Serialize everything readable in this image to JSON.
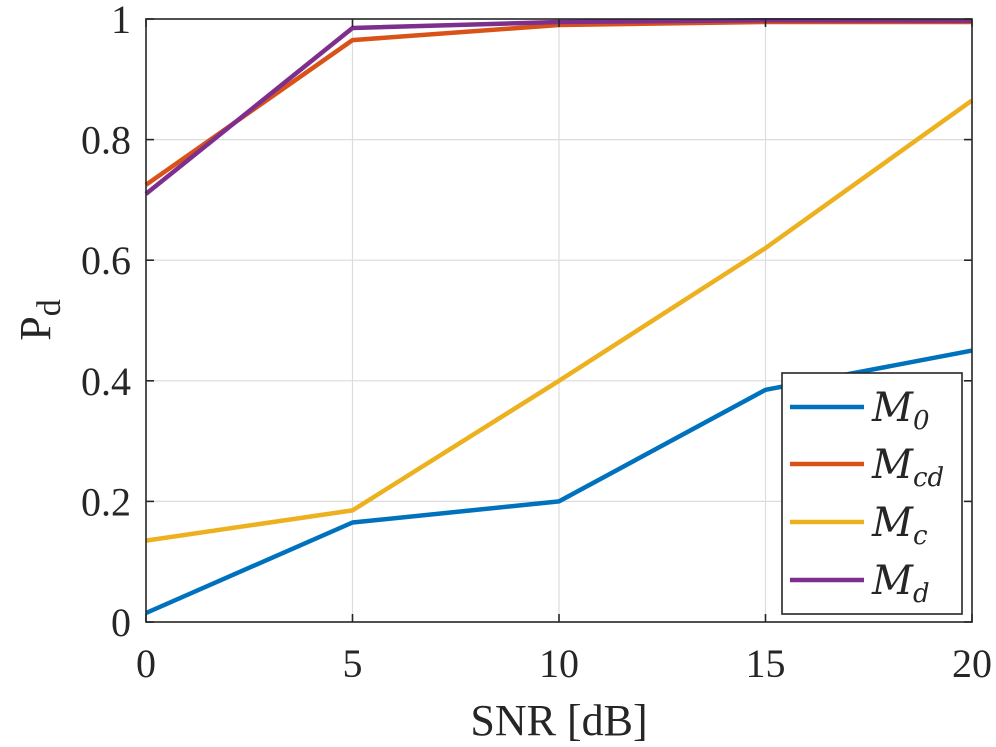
{
  "chart_data": {
    "type": "line",
    "title": "",
    "xlabel": "SNR [dB]",
    "ylabel_main": "P",
    "ylabel_sub": "d",
    "xlim": [
      0,
      20
    ],
    "ylim": [
      0,
      1
    ],
    "xticks": [
      0,
      5,
      10,
      15,
      20
    ],
    "xtick_labels": [
      "0",
      "5",
      "10",
      "15",
      "20"
    ],
    "yticks": [
      0,
      0.2,
      0.4,
      0.6,
      0.8,
      1
    ],
    "ytick_labels": [
      "0",
      "0.2",
      "0.4",
      "0.6",
      "0.8",
      "1"
    ],
    "grid": true,
    "legend_position": "bottom-right",
    "x": [
      0,
      5,
      10,
      15,
      20
    ],
    "series": [
      {
        "name": "M",
        "sub": "0",
        "color": "#0072BD",
        "values": [
          0.015,
          0.165,
          0.2,
          0.385,
          0.45
        ]
      },
      {
        "name": "M",
        "sub": "cd",
        "color": "#D95319",
        "values": [
          0.725,
          0.965,
          0.99,
          0.995,
          0.995
        ]
      },
      {
        "name": "M",
        "sub": "c",
        "color": "#EDB120",
        "values": [
          0.135,
          0.185,
          0.4,
          0.62,
          0.865
        ]
      },
      {
        "name": "M",
        "sub": "d",
        "color": "#7E2F8E",
        "values": [
          0.71,
          0.985,
          0.995,
          0.998,
          0.997
        ]
      }
    ]
  }
}
